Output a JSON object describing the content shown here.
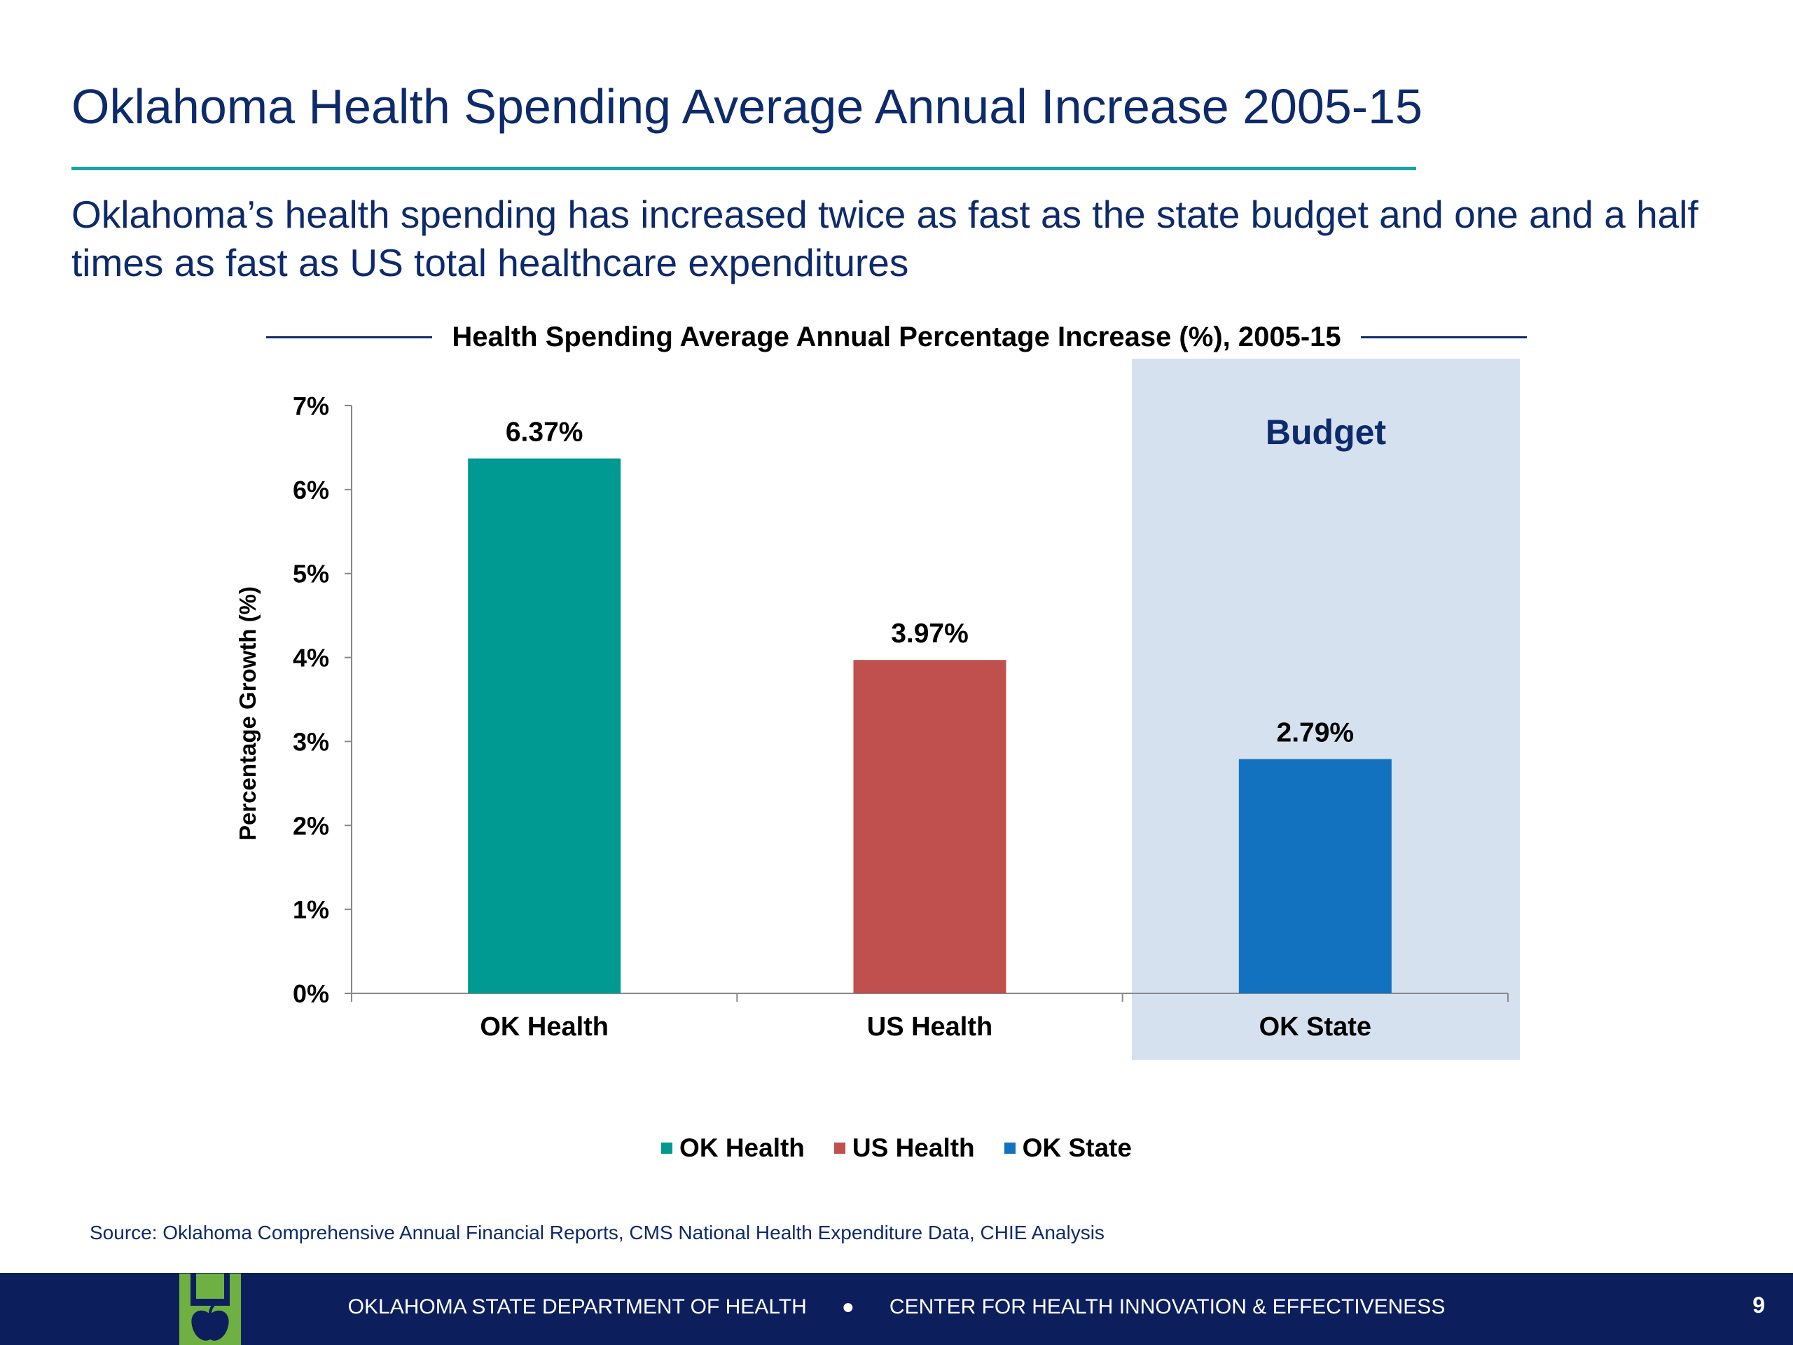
{
  "slide": {
    "title": "Oklahoma Health Spending Average Annual Increase 2005-15",
    "subtitle": "Oklahoma’s health spending has increased twice as fast as the state budget and one and a half times as fast as US total healthcare expenditures",
    "budget_label": "Budget",
    "source": "Source: Oklahoma Comprehensive Annual Financial Reports, CMS National Health Expenditure Data, CHIE Analysis"
  },
  "chart_data": {
    "type": "bar",
    "title": "Health Spending Average Annual Percentage Increase (%), 2005-15",
    "xlabel": "",
    "ylabel": "Percentage Growth (%)",
    "categories": [
      "OK Health",
      "US Health",
      "OK State"
    ],
    "values": [
      6.37,
      3.97,
      2.79
    ],
    "data_labels": [
      "6.37%",
      "3.97%",
      "2.79%"
    ],
    "colors": [
      "#009a93",
      "#c0504d",
      "#1372c0"
    ],
    "ylim": [
      0,
      7
    ],
    "yticks": [
      0,
      1,
      2,
      3,
      4,
      5,
      6,
      7
    ],
    "ytick_labels": [
      "0%",
      "1%",
      "2%",
      "3%",
      "4%",
      "5%",
      "6%",
      "7%"
    ],
    "grid": false,
    "legend": {
      "placement": "bottom",
      "entries": [
        {
          "label": "OK Health",
          "color": "#009a93"
        },
        {
          "label": "US Health",
          "color": "#c0504d"
        },
        {
          "label": "OK State",
          "color": "#1372c0"
        }
      ]
    },
    "highlight": {
      "category": "OK State",
      "label": "Budget",
      "color": "#d6e1ef"
    }
  },
  "footer": {
    "org": "OKLAHOMA STATE DEPARTMENT OF HEALTH",
    "separator": "●",
    "center": "CENTER FOR HEALTH INNOVATION & EFFECTIVENESS",
    "page_number": "9",
    "logo_icon": "apple-logo-icon"
  }
}
